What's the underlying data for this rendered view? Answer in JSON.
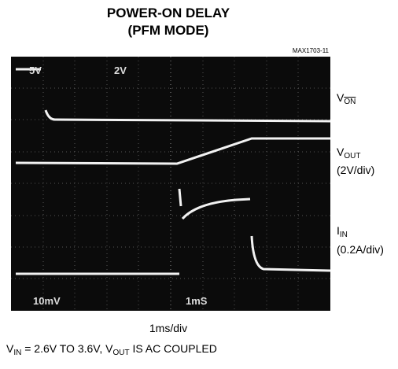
{
  "header": {
    "title_line1": "POWER-ON  DELAY",
    "title_line2": "(PFM MODE)",
    "figure_id": "MAX1703-11"
  },
  "screen_labels": {
    "ch1_scale": "5V",
    "ch2_scale": "2V",
    "ch3_scale": "10mV",
    "time_scale": "1mS"
  },
  "traces": [
    {
      "main": "V",
      "sub": "ON",
      "note": null
    },
    {
      "main": "V",
      "sub": "OUT",
      "note": "(2V/div)"
    },
    {
      "main": "I",
      "sub": "IN",
      "note": "(0.2A/div)"
    }
  ],
  "x_label": "1ms/div",
  "footnote": {
    "p1": "V",
    "p1_sub": "IN",
    "p2": " = 2.6V TO 3.6V, ",
    "p3": "V",
    "p3_sub": "OUT",
    "p4": " IS AC COUPLED"
  }
}
